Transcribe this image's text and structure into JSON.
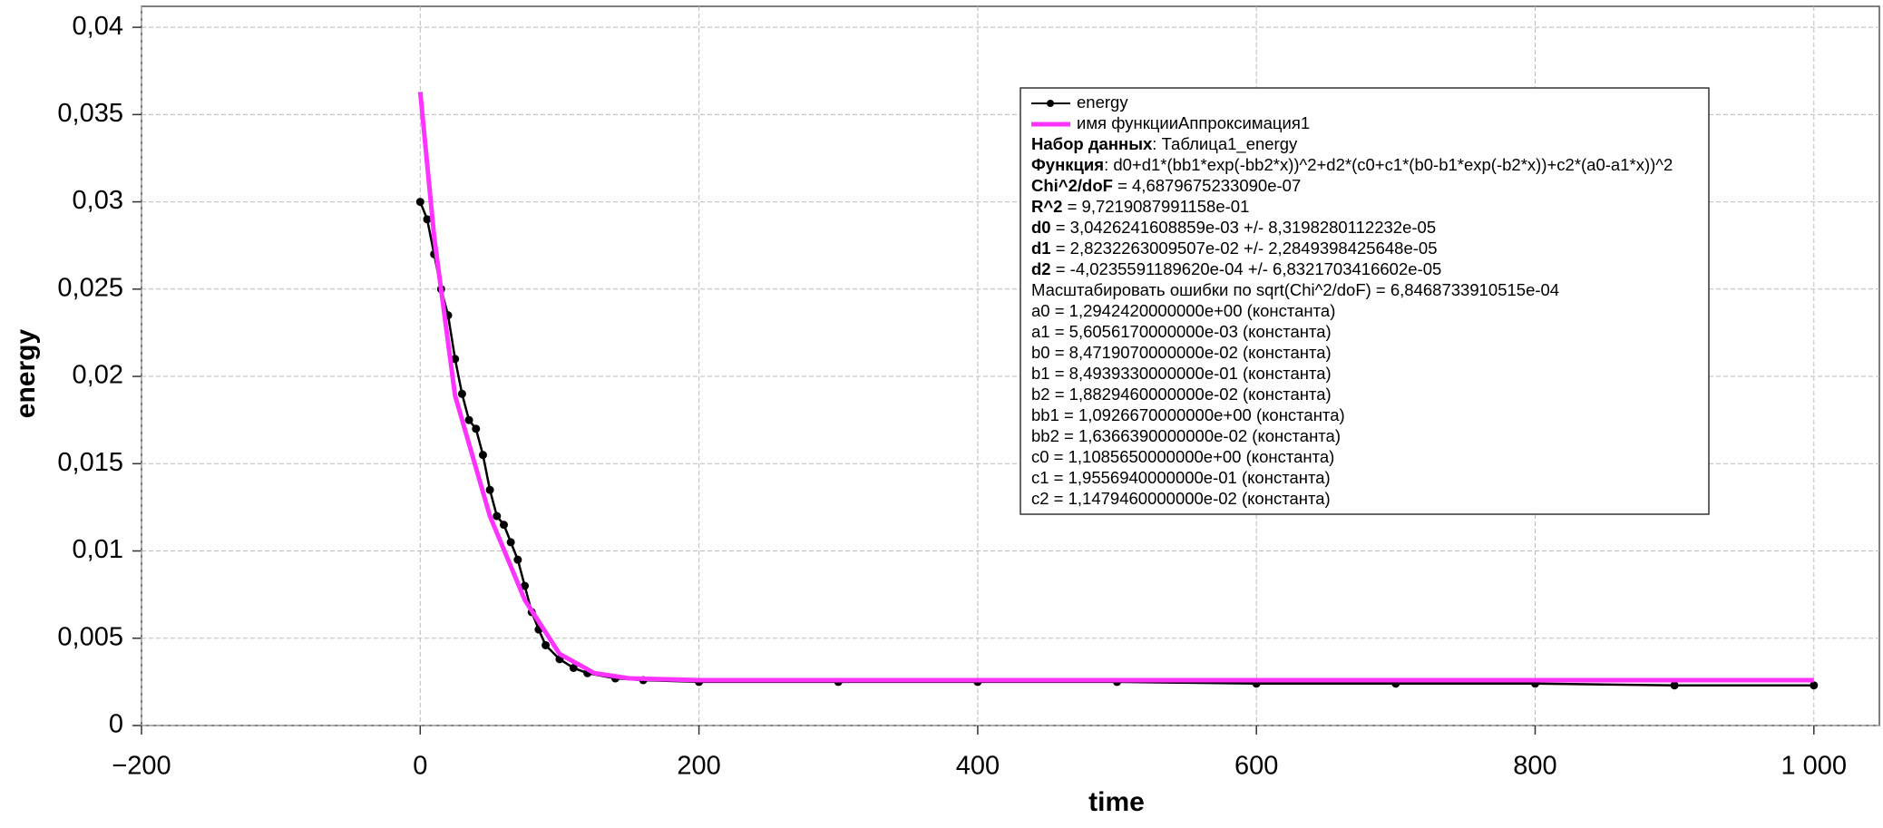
{
  "chart_data": {
    "type": "line",
    "xlabel": "time",
    "ylabel": "energy",
    "xlim": [
      -200,
      1047
    ],
    "ylim": [
      0,
      0.0412
    ],
    "xticks": [
      {
        "value": -200,
        "label": "−200"
      },
      0,
      200,
      400,
      600,
      800,
      {
        "value": 1000,
        "label": "1 000"
      }
    ],
    "yticks": [
      0,
      {
        "value": 0.005,
        "label": "0,005"
      },
      {
        "value": 0.01,
        "label": "0,01"
      },
      {
        "value": 0.015,
        "label": "0,015"
      },
      {
        "value": 0.02,
        "label": "0,02"
      },
      {
        "value": 0.025,
        "label": "0,025"
      },
      {
        "value": 0.03,
        "label": "0,03"
      },
      {
        "value": 0.035,
        "label": "0,035"
      },
      {
        "value": 0.04,
        "label": "0,04"
      }
    ],
    "grid": true,
    "series": [
      {
        "name": "energy",
        "color": "#000000",
        "marker": "circle",
        "x": [
          0,
          5,
          10,
          15,
          20,
          25,
          30,
          35,
          40,
          45,
          50,
          55,
          60,
          65,
          70,
          75,
          80,
          85,
          90,
          100,
          110,
          120,
          140,
          160,
          200,
          300,
          400,
          500,
          600,
          700,
          800,
          900,
          1000
        ],
        "values": [
          0.03,
          0.029,
          0.027,
          0.025,
          0.0235,
          0.021,
          0.019,
          0.0175,
          0.017,
          0.0155,
          0.0135,
          0.012,
          0.0115,
          0.0105,
          0.0095,
          0.008,
          0.0065,
          0.0055,
          0.0046,
          0.0038,
          0.0033,
          0.003,
          0.0027,
          0.0026,
          0.0025,
          0.0025,
          0.0025,
          0.0025,
          0.0024,
          0.0024,
          0.0024,
          0.0023,
          0.0023
        ]
      },
      {
        "name": "имя функцииАппроксимация1",
        "color": "#ff33ff",
        "x": [
          0,
          10,
          25,
          50,
          75,
          100,
          125,
          150,
          200,
          400,
          600,
          800,
          1000
        ],
        "values": [
          0.0363,
          0.028,
          0.0189,
          0.012,
          0.0072,
          0.0041,
          0.003,
          0.0027,
          0.0026,
          0.0026,
          0.0026,
          0.0026,
          0.0026
        ]
      }
    ],
    "fit_info": [
      {
        "bold": "Набор данных",
        "text": ": Таблица1_energy"
      },
      {
        "bold": "Функция",
        "text": ": d0+d1*(bb1*exp(-bb2*x))^2+d2*(c0+c1*(b0-b1*exp(-b2*x))+c2*(a0-a1*x))^2"
      },
      {
        "bold": "Chi^2/doF",
        "text": " = 4,6879675233090e-07"
      },
      {
        "bold": "R^2",
        "text": " = 9,7219087991158e-01"
      },
      {
        "bold": "d0",
        "text": " = 3,0426241608859e-03 +/- 8,3198280112232e-05"
      },
      {
        "bold": "d1",
        "text": " = 2,8232263009507e-02 +/- 2,2849398425648e-05"
      },
      {
        "bold": "d2",
        "text": " = -4,0235591189620e-04 +/- 6,8321703416602e-05"
      },
      "Масштабировать ошибки по sqrt(Chi^2/doF) = 6,8468733910515e-04",
      "a0 = 1,2942420000000e+00 (константа)",
      "a1 = 5,6056170000000e-03 (константа)",
      "b0 = 8,4719070000000e-02 (константа)",
      "b1 = 8,4939330000000e-01 (константа)",
      "b2 = 1,8829460000000e-02 (константа)",
      "bb1 = 1,0926670000000e+00 (константа)",
      "bb2 = 1,6366390000000e-02 (константа)",
      "c0 = 1,1085650000000e+00 (константа)",
      "c1 = 1,9556940000000e-01 (константа)",
      "c2 = 1,1479460000000e-02 (константа)"
    ]
  }
}
